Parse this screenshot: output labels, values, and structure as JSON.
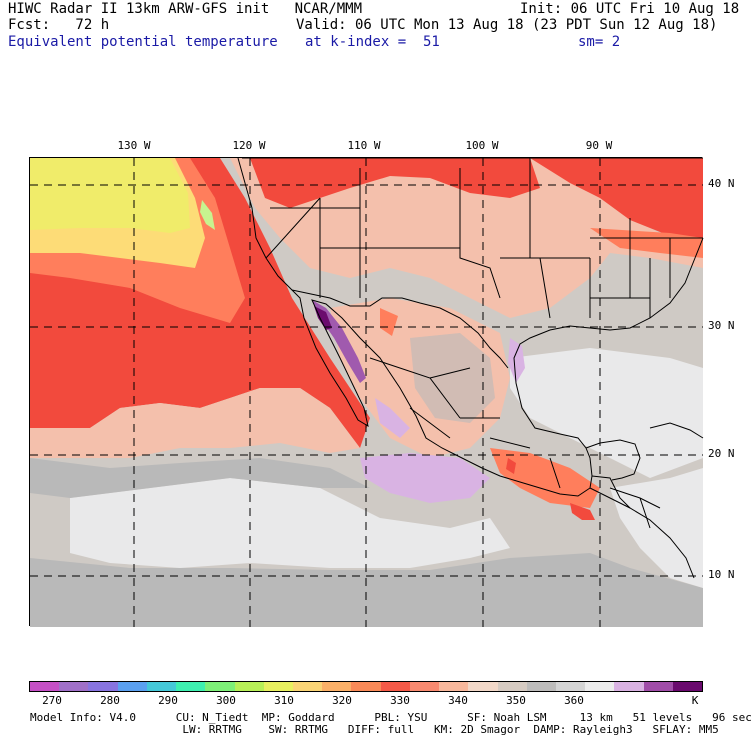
{
  "header": {
    "line1_left": "HIWC Radar II 13km ARW-GFS init   NCAR/MMM",
    "line1_right": "Init: 06 UTC Fri 10 Aug 18",
    "line2_left": "Fcst:   72 h",
    "line2_right": "Valid: 06 UTC Mon 13 Aug 18 (23 PDT Sun 12 Aug 18)",
    "line3_field": "Equivalent potential temperature",
    "line3_level": "at k-index =  51",
    "line3_smooth": "sm= 2"
  },
  "map": {
    "lon_labels": [
      "130 W",
      "120 W",
      "110 W",
      "100 W",
      "90 W"
    ],
    "lat_labels": [
      "40 N",
      "30 N",
      "20 N",
      "10 N"
    ],
    "colors": {
      "c300": "#cfcac5",
      "c335": "#f24a3d",
      "c340": "#ff7e5c",
      "c345": "#f4c0ac",
      "c350": "#cfcac5",
      "c355": "#b9b9b9",
      "c360": "#e9e9ea",
      "c315": "#fde77a",
      "c310": "#f0ec6a",
      "c305": "#c7f38f",
      "c365": "#d9b3e3",
      "c370": "#a05aae",
      "c375": "#6b0b6e"
    }
  },
  "colorbar": {
    "colors": [
      "#c550c5",
      "#a070c8",
      "#8874e0",
      "#5ba0f0",
      "#45c8d8",
      "#3ef0b0",
      "#7ef078",
      "#b8f058",
      "#e8f060",
      "#fad476",
      "#fbb068",
      "#f98a58",
      "#f45a48",
      "#f88a70",
      "#f8b89c",
      "#f2d8c8",
      "#d6cbc2",
      "#bdbcbb",
      "#d4d4d4",
      "#ececec",
      "#d9b2e2",
      "#a04da8",
      "#6a0a6e"
    ],
    "labels": [
      "270",
      "280",
      "290",
      "300",
      "310",
      "320",
      "330",
      "340",
      "350",
      "360"
    ],
    "unit": "K"
  },
  "footer": {
    "line1": "Model Info: V4.0      CU: N_Tiedt  MP: Goddard      PBL: YSU      SF: Noah LSM     13 km   51 levels   96 sec",
    "line2": "                       LW: RRTMG    SW: RRTMG   DIFF: full   KM: 2D Smagor  DAMP: Rayleigh3   SFLAY: MM5"
  }
}
